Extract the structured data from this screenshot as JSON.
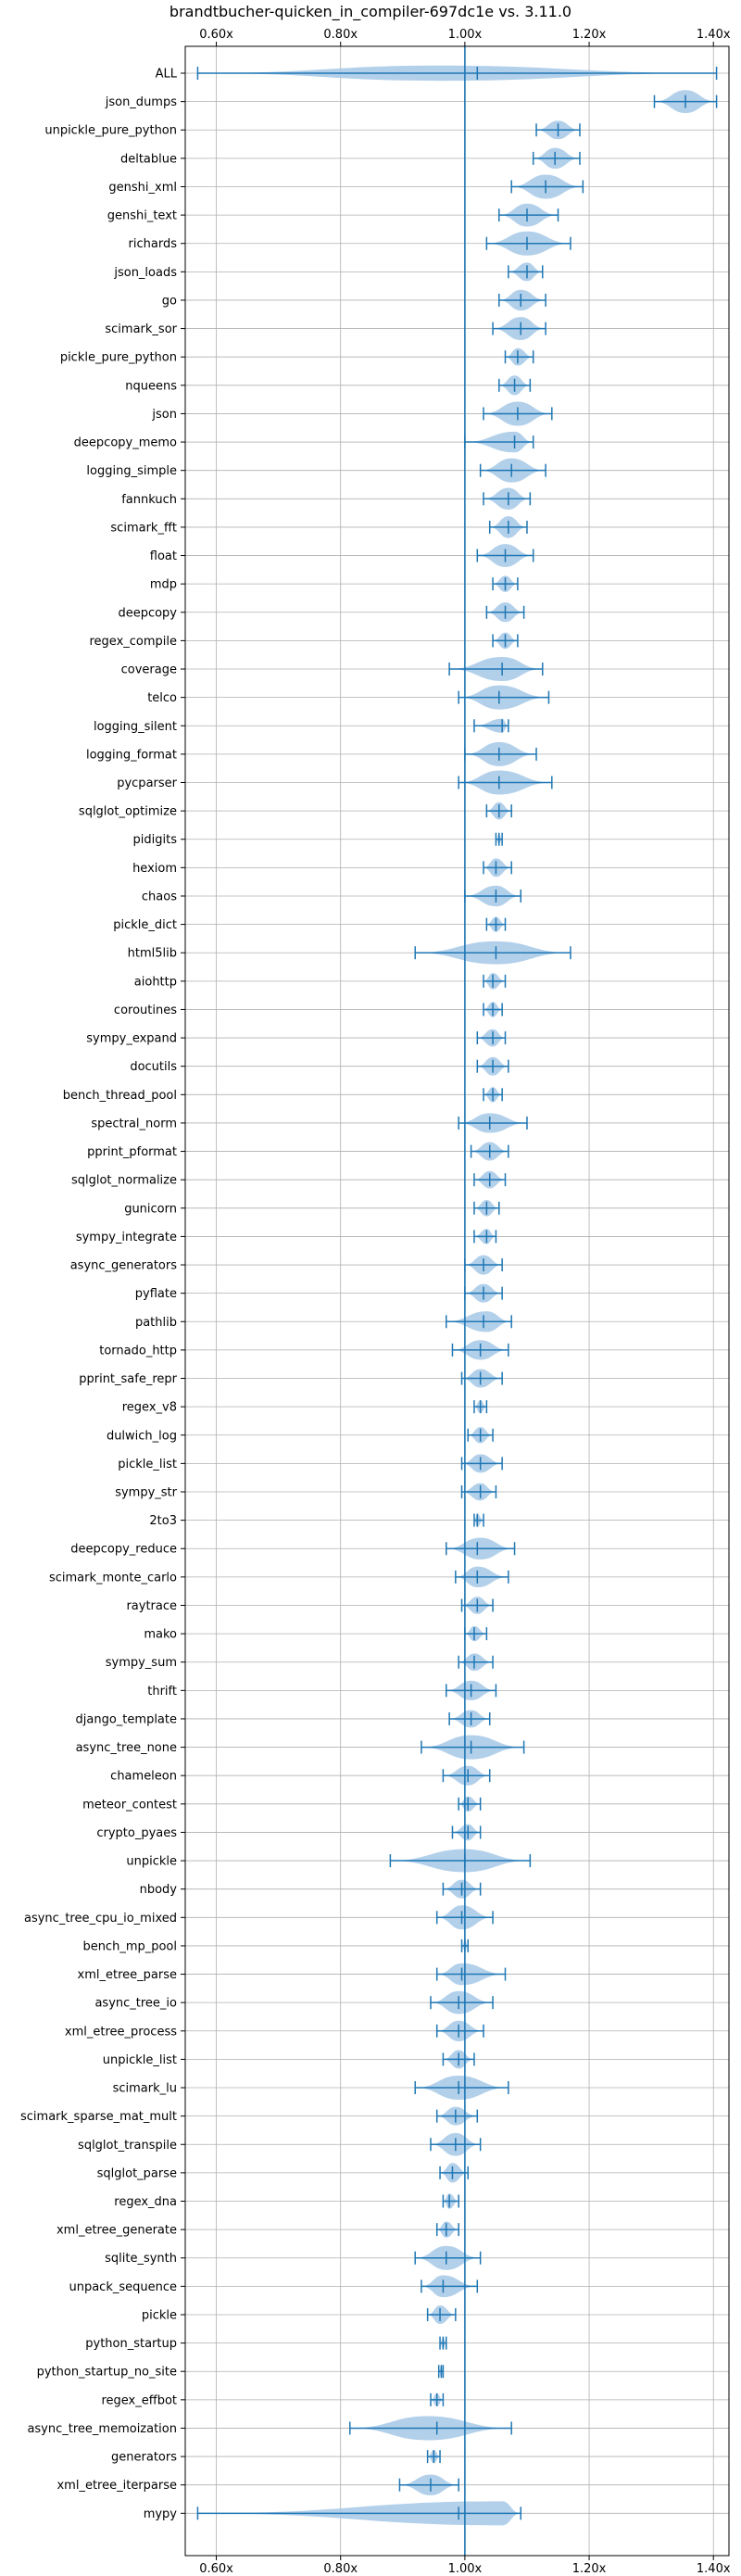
{
  "chart_data": {
    "type": "violin",
    "title": "brandtbucher-quicken_in_compiler-697dc1e vs. 3.11.0",
    "orientation": "horizontal",
    "xlim": [
      0.55,
      1.425
    ],
    "x_ticks": [
      0.6,
      0.8,
      1.0,
      1.2,
      1.4
    ],
    "x_tick_labels": [
      "0.60x",
      "0.80x",
      "1.00x",
      "1.20x",
      "1.40x"
    ],
    "x_tick_position": "top and bottom",
    "reference_line": 1.0,
    "grid": true,
    "colors": {
      "violin_fill": "#a6c8e6",
      "line": "#1f77b4",
      "grid": "#b0b0b0"
    },
    "categories": [
      "ALL",
      "json_dumps",
      "unpickle_pure_python",
      "deltablue",
      "genshi_xml",
      "genshi_text",
      "richards",
      "json_loads",
      "go",
      "scimark_sor",
      "pickle_pure_python",
      "nqueens",
      "json",
      "deepcopy_memo",
      "logging_simple",
      "fannkuch",
      "scimark_fft",
      "float",
      "mdp",
      "deepcopy",
      "regex_compile",
      "coverage",
      "telco",
      "logging_silent",
      "logging_format",
      "pycparser",
      "sqlglot_optimize",
      "pidigits",
      "hexiom",
      "chaos",
      "pickle_dict",
      "html5lib",
      "aiohttp",
      "coroutines",
      "sympy_expand",
      "docutils",
      "bench_thread_pool",
      "spectral_norm",
      "pprint_pformat",
      "sqlglot_normalize",
      "gunicorn",
      "sympy_integrate",
      "async_generators",
      "pyflate",
      "pathlib",
      "tornado_http",
      "pprint_safe_repr",
      "regex_v8",
      "dulwich_log",
      "pickle_list",
      "sympy_str",
      "2to3",
      "deepcopy_reduce",
      "scimark_monte_carlo",
      "raytrace",
      "mako",
      "sympy_sum",
      "thrift",
      "django_template",
      "async_tree_none",
      "chameleon",
      "meteor_contest",
      "crypto_pyaes",
      "unpickle",
      "nbody",
      "async_tree_cpu_io_mixed",
      "bench_mp_pool",
      "xml_etree_parse",
      "async_tree_io",
      "xml_etree_process",
      "unpickle_list",
      "scimark_lu",
      "scimark_sparse_mat_mult",
      "sqlglot_transpile",
      "sqlglot_parse",
      "regex_dna",
      "xml_etree_generate",
      "sqlite_synth",
      "unpack_sequence",
      "pickle",
      "python_startup",
      "python_startup_no_site",
      "regex_effbot",
      "async_tree_memoization",
      "generators",
      "xml_etree_iterparse",
      "mypy"
    ],
    "series": [
      {
        "min": 0.57,
        "mean": 1.02,
        "max": 1.405,
        "center": 0.96,
        "width": 0.014
      },
      {
        "min": 1.305,
        "mean": 1.355,
        "max": 1.405,
        "center": 1.355,
        "width": 0.028
      },
      {
        "min": 1.115,
        "mean": 1.15,
        "max": 1.185,
        "center": 1.15,
        "width": 0.02
      },
      {
        "min": 1.11,
        "mean": 1.145,
        "max": 1.185,
        "center": 1.145,
        "width": 0.024
      },
      {
        "min": 1.075,
        "mean": 1.13,
        "max": 1.19,
        "center": 1.13,
        "width": 0.032
      },
      {
        "min": 1.055,
        "mean": 1.1,
        "max": 1.15,
        "center": 1.1,
        "width": 0.028
      },
      {
        "min": 1.035,
        "mean": 1.1,
        "max": 1.17,
        "center": 1.1,
        "width": 0.034
      },
      {
        "min": 1.07,
        "mean": 1.1,
        "max": 1.125,
        "center": 1.1,
        "width": 0.02
      },
      {
        "min": 1.055,
        "mean": 1.09,
        "max": 1.13,
        "center": 1.09,
        "width": 0.024
      },
      {
        "min": 1.045,
        "mean": 1.09,
        "max": 1.13,
        "center": 1.09,
        "width": 0.028
      },
      {
        "min": 1.065,
        "mean": 1.085,
        "max": 1.11,
        "center": 1.085,
        "width": 0.018
      },
      {
        "min": 1.055,
        "mean": 1.08,
        "max": 1.105,
        "center": 1.08,
        "width": 0.022
      },
      {
        "min": 1.03,
        "mean": 1.085,
        "max": 1.14,
        "center": 1.085,
        "width": 0.034
      },
      {
        "min": 1.0,
        "mean": 1.08,
        "max": 1.11,
        "center": 1.08,
        "width": 0.024
      },
      {
        "min": 1.025,
        "mean": 1.075,
        "max": 1.13,
        "center": 1.075,
        "width": 0.03
      },
      {
        "min": 1.03,
        "mean": 1.07,
        "max": 1.105,
        "center": 1.07,
        "width": 0.026
      },
      {
        "min": 1.04,
        "mean": 1.07,
        "max": 1.1,
        "center": 1.07,
        "width": 0.026
      },
      {
        "min": 1.02,
        "mean": 1.065,
        "max": 1.11,
        "center": 1.065,
        "width": 0.028
      },
      {
        "min": 1.045,
        "mean": 1.065,
        "max": 1.085,
        "center": 1.065,
        "width": 0.016
      },
      {
        "min": 1.035,
        "mean": 1.065,
        "max": 1.095,
        "center": 1.065,
        "width": 0.022
      },
      {
        "min": 1.045,
        "mean": 1.065,
        "max": 1.085,
        "center": 1.065,
        "width": 0.016
      },
      {
        "min": 0.975,
        "mean": 1.06,
        "max": 1.125,
        "center": 1.06,
        "width": 0.034
      },
      {
        "min": 0.99,
        "mean": 1.055,
        "max": 1.135,
        "center": 1.055,
        "width": 0.03
      },
      {
        "min": 1.015,
        "mean": 1.06,
        "max": 1.07,
        "center": 1.06,
        "width": 0.012
      },
      {
        "min": 1.0,
        "mean": 1.055,
        "max": 1.115,
        "center": 1.055,
        "width": 0.034
      },
      {
        "min": 0.99,
        "mean": 1.055,
        "max": 1.14,
        "center": 1.055,
        "width": 0.032
      },
      {
        "min": 1.035,
        "mean": 1.055,
        "max": 1.075,
        "center": 1.055,
        "width": 0.018
      },
      {
        "min": 1.05,
        "mean": 1.055,
        "max": 1.06,
        "center": 1.055,
        "width": 0.005
      },
      {
        "min": 1.03,
        "mean": 1.05,
        "max": 1.075,
        "center": 1.05,
        "width": 0.02
      },
      {
        "min": 1.0,
        "mean": 1.05,
        "max": 1.09,
        "center": 1.05,
        "width": 0.024
      },
      {
        "min": 1.035,
        "mean": 1.05,
        "max": 1.065,
        "center": 1.05,
        "width": 0.014
      },
      {
        "min": 0.92,
        "mean": 1.05,
        "max": 1.17,
        "center": 1.05,
        "width": 0.028
      },
      {
        "min": 1.03,
        "mean": 1.045,
        "max": 1.065,
        "center": 1.045,
        "width": 0.016
      },
      {
        "min": 1.03,
        "mean": 1.045,
        "max": 1.06,
        "center": 1.045,
        "width": 0.014
      },
      {
        "min": 1.02,
        "mean": 1.045,
        "max": 1.065,
        "center": 1.045,
        "width": 0.018
      },
      {
        "min": 1.02,
        "mean": 1.045,
        "max": 1.07,
        "center": 1.045,
        "width": 0.02
      },
      {
        "min": 1.03,
        "mean": 1.045,
        "max": 1.06,
        "center": 1.045,
        "width": 0.014
      },
      {
        "min": 0.99,
        "mean": 1.04,
        "max": 1.1,
        "center": 1.04,
        "width": 0.022
      },
      {
        "min": 1.01,
        "mean": 1.04,
        "max": 1.07,
        "center": 1.04,
        "width": 0.02
      },
      {
        "min": 1.015,
        "mean": 1.04,
        "max": 1.065,
        "center": 1.04,
        "width": 0.018
      },
      {
        "min": 1.015,
        "mean": 1.035,
        "max": 1.055,
        "center": 1.035,
        "width": 0.016
      },
      {
        "min": 1.015,
        "mean": 1.035,
        "max": 1.05,
        "center": 1.035,
        "width": 0.014
      },
      {
        "min": 1.0,
        "mean": 1.03,
        "max": 1.06,
        "center": 1.03,
        "width": 0.022
      },
      {
        "min": 1.0,
        "mean": 1.03,
        "max": 1.06,
        "center": 1.03,
        "width": 0.02
      },
      {
        "min": 0.97,
        "mean": 1.03,
        "max": 1.075,
        "center": 1.035,
        "width": 0.024
      },
      {
        "min": 0.98,
        "mean": 1.025,
        "max": 1.07,
        "center": 1.025,
        "width": 0.022
      },
      {
        "min": 0.995,
        "mean": 1.025,
        "max": 1.06,
        "center": 1.025,
        "width": 0.02
      },
      {
        "min": 1.015,
        "mean": 1.025,
        "max": 1.035,
        "center": 1.025,
        "width": 0.01
      },
      {
        "min": 1.005,
        "mean": 1.025,
        "max": 1.045,
        "center": 1.025,
        "width": 0.016
      },
      {
        "min": 0.995,
        "mean": 1.025,
        "max": 1.06,
        "center": 1.025,
        "width": 0.02
      },
      {
        "min": 0.995,
        "mean": 1.025,
        "max": 1.05,
        "center": 1.025,
        "width": 0.018
      },
      {
        "min": 1.015,
        "mean": 1.02,
        "max": 1.03,
        "center": 1.02,
        "width": 0.01
      },
      {
        "min": 0.97,
        "mean": 1.02,
        "max": 1.08,
        "center": 1.025,
        "width": 0.026
      },
      {
        "min": 0.985,
        "mean": 1.02,
        "max": 1.07,
        "center": 1.02,
        "width": 0.024
      },
      {
        "min": 0.995,
        "mean": 1.02,
        "max": 1.045,
        "center": 1.02,
        "width": 0.018
      },
      {
        "min": 1.0,
        "mean": 1.015,
        "max": 1.035,
        "center": 1.015,
        "width": 0.014
      },
      {
        "min": 0.99,
        "mean": 1.015,
        "max": 1.045,
        "center": 1.015,
        "width": 0.018
      },
      {
        "min": 0.97,
        "mean": 1.01,
        "max": 1.05,
        "center": 1.01,
        "width": 0.022
      },
      {
        "min": 0.975,
        "mean": 1.01,
        "max": 1.04,
        "center": 1.01,
        "width": 0.018
      },
      {
        "min": 0.93,
        "mean": 1.01,
        "max": 1.095,
        "center": 1.01,
        "width": 0.034
      },
      {
        "min": 0.965,
        "mean": 1.005,
        "max": 1.04,
        "center": 1.005,
        "width": 0.022
      },
      {
        "min": 0.99,
        "mean": 1.005,
        "max": 1.025,
        "center": 1.005,
        "width": 0.014
      },
      {
        "min": 0.98,
        "mean": 1.005,
        "max": 1.025,
        "center": 1.005,
        "width": 0.016
      },
      {
        "min": 0.88,
        "mean": 1.0,
        "max": 1.105,
        "center": 1.0,
        "width": 0.028
      },
      {
        "min": 0.965,
        "mean": 0.995,
        "max": 1.025,
        "center": 0.995,
        "width": 0.02
      },
      {
        "min": 0.955,
        "mean": 0.995,
        "max": 1.045,
        "center": 0.995,
        "width": 0.03
      },
      {
        "min": 0.995,
        "mean": 1.0,
        "max": 1.005,
        "center": 1.0,
        "width": 0.005
      },
      {
        "min": 0.955,
        "mean": 0.995,
        "max": 1.065,
        "center": 0.995,
        "width": 0.026
      },
      {
        "min": 0.945,
        "mean": 0.99,
        "max": 1.045,
        "center": 0.99,
        "width": 0.028
      },
      {
        "min": 0.955,
        "mean": 0.99,
        "max": 1.03,
        "center": 0.99,
        "width": 0.024
      },
      {
        "min": 0.965,
        "mean": 0.99,
        "max": 1.015,
        "center": 0.99,
        "width": 0.02
      },
      {
        "min": 0.92,
        "mean": 0.99,
        "max": 1.07,
        "center": 0.99,
        "width": 0.034
      },
      {
        "min": 0.955,
        "mean": 0.985,
        "max": 1.02,
        "center": 0.985,
        "width": 0.02
      },
      {
        "min": 0.945,
        "mean": 0.985,
        "max": 1.025,
        "center": 0.985,
        "width": 0.028
      },
      {
        "min": 0.96,
        "mean": 0.98,
        "max": 1.005,
        "center": 0.98,
        "width": 0.022
      },
      {
        "min": 0.965,
        "mean": 0.975,
        "max": 0.99,
        "center": 0.975,
        "width": 0.014
      },
      {
        "min": 0.955,
        "mean": 0.97,
        "max": 0.99,
        "center": 0.97,
        "width": 0.016
      },
      {
        "min": 0.92,
        "mean": 0.97,
        "max": 1.025,
        "center": 0.97,
        "width": 0.03
      },
      {
        "min": 0.93,
        "mean": 0.965,
        "max": 1.02,
        "center": 0.965,
        "width": 0.026
      },
      {
        "min": 0.94,
        "mean": 0.96,
        "max": 0.985,
        "center": 0.96,
        "width": 0.02
      },
      {
        "min": 0.96,
        "mean": 0.965,
        "max": 0.97,
        "center": 0.965,
        "width": 0.008
      },
      {
        "min": 0.958,
        "mean": 0.962,
        "max": 0.965,
        "center": 0.962,
        "width": 0.007
      },
      {
        "min": 0.945,
        "mean": 0.955,
        "max": 0.965,
        "center": 0.955,
        "width": 0.01
      },
      {
        "min": 0.815,
        "mean": 0.955,
        "max": 1.075,
        "center": 0.94,
        "width": 0.03
      },
      {
        "min": 0.94,
        "mean": 0.95,
        "max": 0.96,
        "center": 0.95,
        "width": 0.01
      },
      {
        "min": 0.895,
        "mean": 0.945,
        "max": 0.99,
        "center": 0.945,
        "width": 0.024
      },
      {
        "min": 0.57,
        "mean": 0.99,
        "max": 1.09,
        "center": 1.06,
        "width": 0.036
      }
    ]
  }
}
